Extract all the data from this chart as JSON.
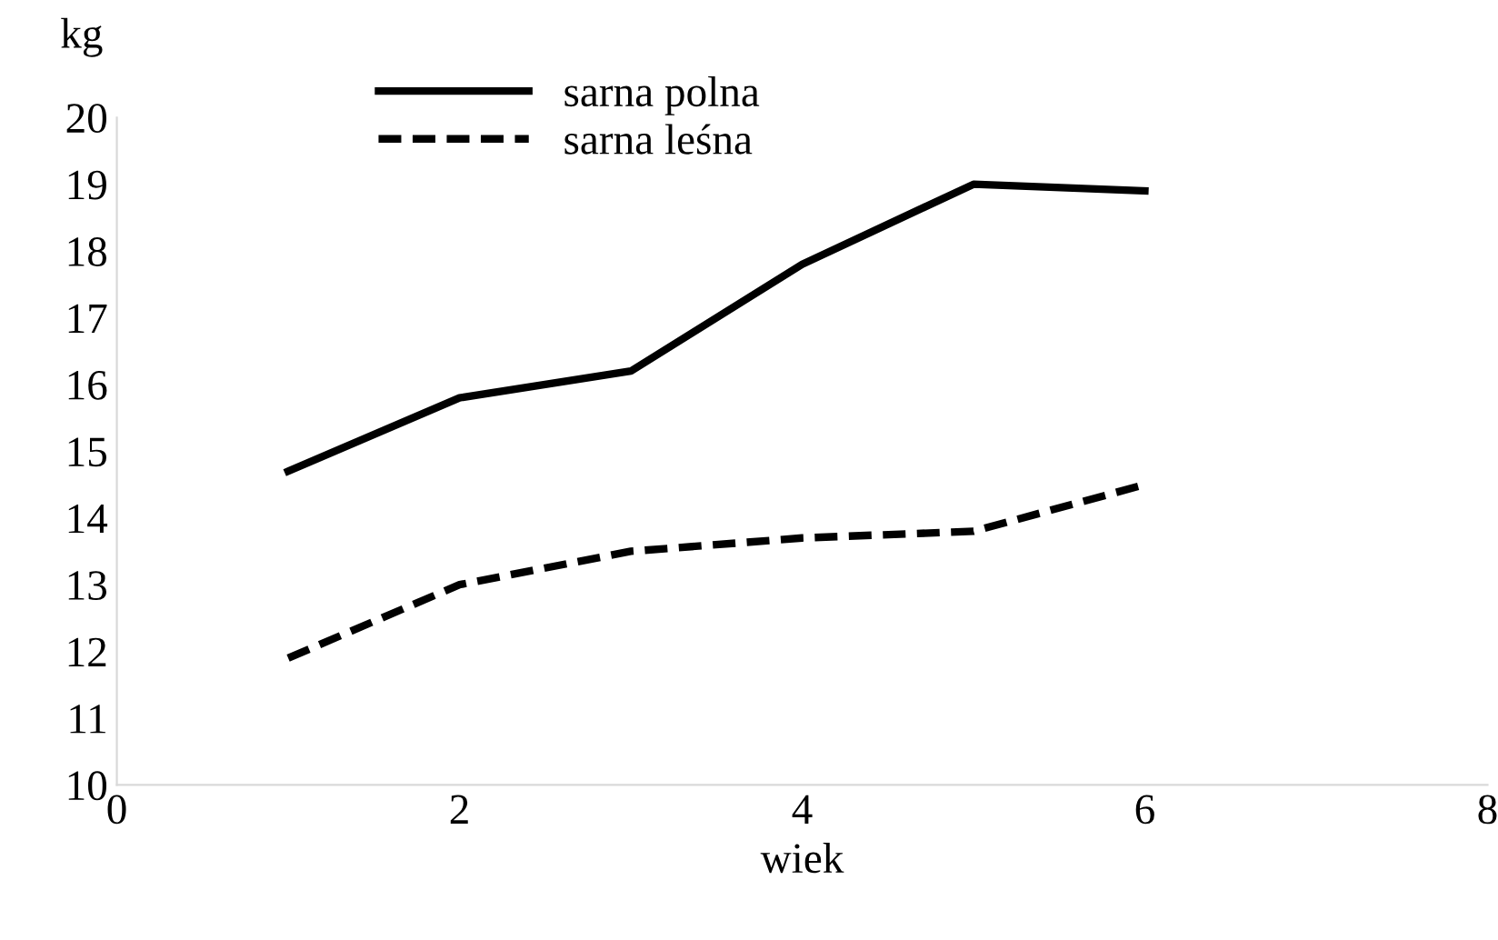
{
  "chart_data": {
    "type": "line",
    "xlabel": "wiek",
    "ylabel": "kg",
    "x": [
      1,
      2,
      3,
      4,
      5,
      6
    ],
    "series": [
      {
        "name": "sarna polna",
        "color": "#000000",
        "line_style": "solid",
        "values": [
          14.7,
          15.8,
          16.2,
          17.8,
          19.0,
          18.9
        ]
      },
      {
        "name": "sarna leśna",
        "color": "#000000",
        "line_style": "dashed",
        "values": [
          11.9,
          13.0,
          13.5,
          13.7,
          13.8,
          14.5
        ]
      }
    ],
    "xlim": [
      0,
      8
    ],
    "xticks": [
      0,
      2,
      4,
      6,
      8
    ],
    "ylim": [
      10,
      20
    ],
    "yticks": [
      10,
      11,
      12,
      13,
      14,
      15,
      16,
      17,
      18,
      19,
      20
    ],
    "grid": false,
    "legend": "top",
    "marker": "none"
  }
}
